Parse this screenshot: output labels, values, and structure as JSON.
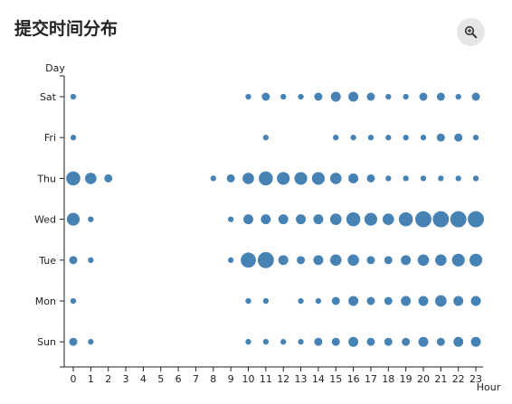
{
  "header": {
    "title": "提交时间分布",
    "zoom_icon": "zoom-in-icon"
  },
  "chart_data": {
    "type": "scatter",
    "title": "提交时间分布",
    "xlabel": "Hour",
    "ylabel": "Day",
    "x_categories": [
      "0",
      "1",
      "2",
      "3",
      "4",
      "5",
      "6",
      "7",
      "8",
      "9",
      "10",
      "11",
      "12",
      "13",
      "14",
      "15",
      "16",
      "17",
      "18",
      "19",
      "20",
      "21",
      "22",
      "23"
    ],
    "y_categories": [
      "Sun",
      "Mon",
      "Tue",
      "Wed",
      "Thu",
      "Fri",
      "Sat"
    ],
    "encoding": "bubble radius proportional to relative commit count (0-10 scale)",
    "color": "#4682b4",
    "values": {
      "Sat": [
        1,
        0,
        0,
        0,
        0,
        0,
        0,
        0,
        0,
        0,
        1,
        2,
        1,
        1,
        2,
        3,
        3,
        2,
        1,
        1,
        2,
        2,
        1,
        2
      ],
      "Fri": [
        1,
        0,
        0,
        0,
        0,
        0,
        0,
        0,
        0,
        0,
        0,
        1,
        0,
        0,
        0,
        1,
        1,
        1,
        1,
        1,
        1,
        2,
        2,
        1
      ],
      "Thu": [
        6,
        4,
        2,
        0,
        0,
        0,
        0,
        0,
        1,
        2,
        4,
        6,
        5,
        5,
        5,
        4,
        3,
        2,
        1,
        1,
        1,
        1,
        1,
        1
      ],
      "Wed": [
        5,
        1,
        0,
        0,
        0,
        0,
        0,
        0,
        0,
        1,
        3,
        3,
        3,
        3,
        3,
        4,
        6,
        5,
        4,
        6,
        8,
        8,
        8,
        8
      ],
      "Tue": [
        2,
        1,
        0,
        0,
        0,
        0,
        0,
        0,
        0,
        1,
        7,
        8,
        3,
        2,
        3,
        4,
        4,
        2,
        2,
        3,
        4,
        4,
        5,
        5
      ],
      "Mon": [
        1,
        0,
        0,
        0,
        0,
        0,
        0,
        0,
        0,
        0,
        1,
        1,
        0,
        1,
        1,
        2,
        3,
        2,
        2,
        3,
        3,
        4,
        3,
        3
      ],
      "Sun": [
        2,
        1,
        0,
        0,
        0,
        0,
        0,
        0,
        0,
        0,
        1,
        1,
        1,
        1,
        2,
        2,
        3,
        2,
        2,
        2,
        3,
        2,
        3,
        3
      ]
    }
  }
}
